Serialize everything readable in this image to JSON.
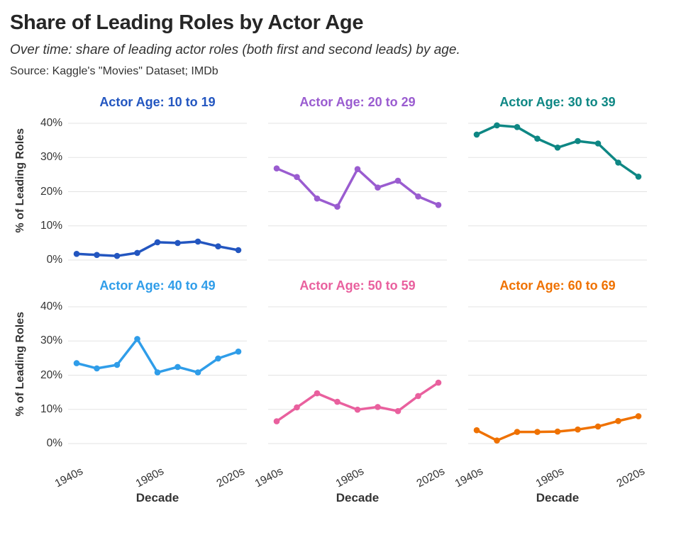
{
  "header": {
    "title": "Share of Leading Roles by Actor Age",
    "subtitle": "Over time: share of leading actor roles (both first and second leads) by age.",
    "source": "Source: Kaggle's \"Movies\" Dataset; IMDb"
  },
  "axes": {
    "y_label": "% of Leading Roles",
    "x_label": "Decade",
    "y_ticks": [
      0,
      10,
      20,
      30,
      40
    ],
    "x_tick_labels": [
      "1940s",
      "1980s",
      "2020s"
    ],
    "x_tick_indices": [
      0,
      4,
      8
    ]
  },
  "chart_data": {
    "type": "line",
    "layout": "small-multiples 2x3",
    "title": "Share of Leading Roles by Actor Age",
    "subtitle": "Over time: share of leading actor roles (both first and second leads) by age.",
    "xlabel": "Decade",
    "ylabel": "% of Leading Roles",
    "x": [
      "1940s",
      "1950s",
      "1960s",
      "1970s",
      "1980s",
      "1990s",
      "2000s",
      "2010s",
      "2020s"
    ],
    "ylim": [
      0,
      40
    ],
    "grid": "horizontal",
    "legend": "none",
    "panels": [
      {
        "title": "Actor Age: 10 to 19",
        "color": "#2356c0",
        "values": [
          1.8,
          1.5,
          1.2,
          2.1,
          5.2,
          5.0,
          5.4,
          4.0,
          2.9
        ]
      },
      {
        "title": "Actor Age: 20 to 29",
        "color": "#9a5cd0",
        "values": [
          26.8,
          24.3,
          18.0,
          15.6,
          26.6,
          21.2,
          23.2,
          18.6,
          16.1
        ]
      },
      {
        "title": "Actor Age: 30 to 39",
        "color": "#0e8784",
        "values": [
          36.7,
          39.4,
          38.9,
          35.5,
          32.9,
          34.8,
          34.1,
          28.5,
          24.4
        ]
      },
      {
        "title": "Actor Age: 40 to 49",
        "color": "#2f9de9",
        "values": [
          23.5,
          22.0,
          23.0,
          30.6,
          20.8,
          22.4,
          20.8,
          24.9,
          26.9
        ]
      },
      {
        "title": "Actor Age: 50 to 59",
        "color": "#e9609e",
        "values": [
          6.5,
          10.6,
          14.7,
          12.2,
          9.9,
          10.7,
          9.5,
          13.9,
          17.8
        ]
      },
      {
        "title": "Actor Age: 60 to 69",
        "color": "#ef7100",
        "values": [
          3.9,
          0.9,
          3.4,
          3.4,
          3.5,
          4.1,
          5.0,
          6.6,
          8.0
        ]
      }
    ]
  }
}
